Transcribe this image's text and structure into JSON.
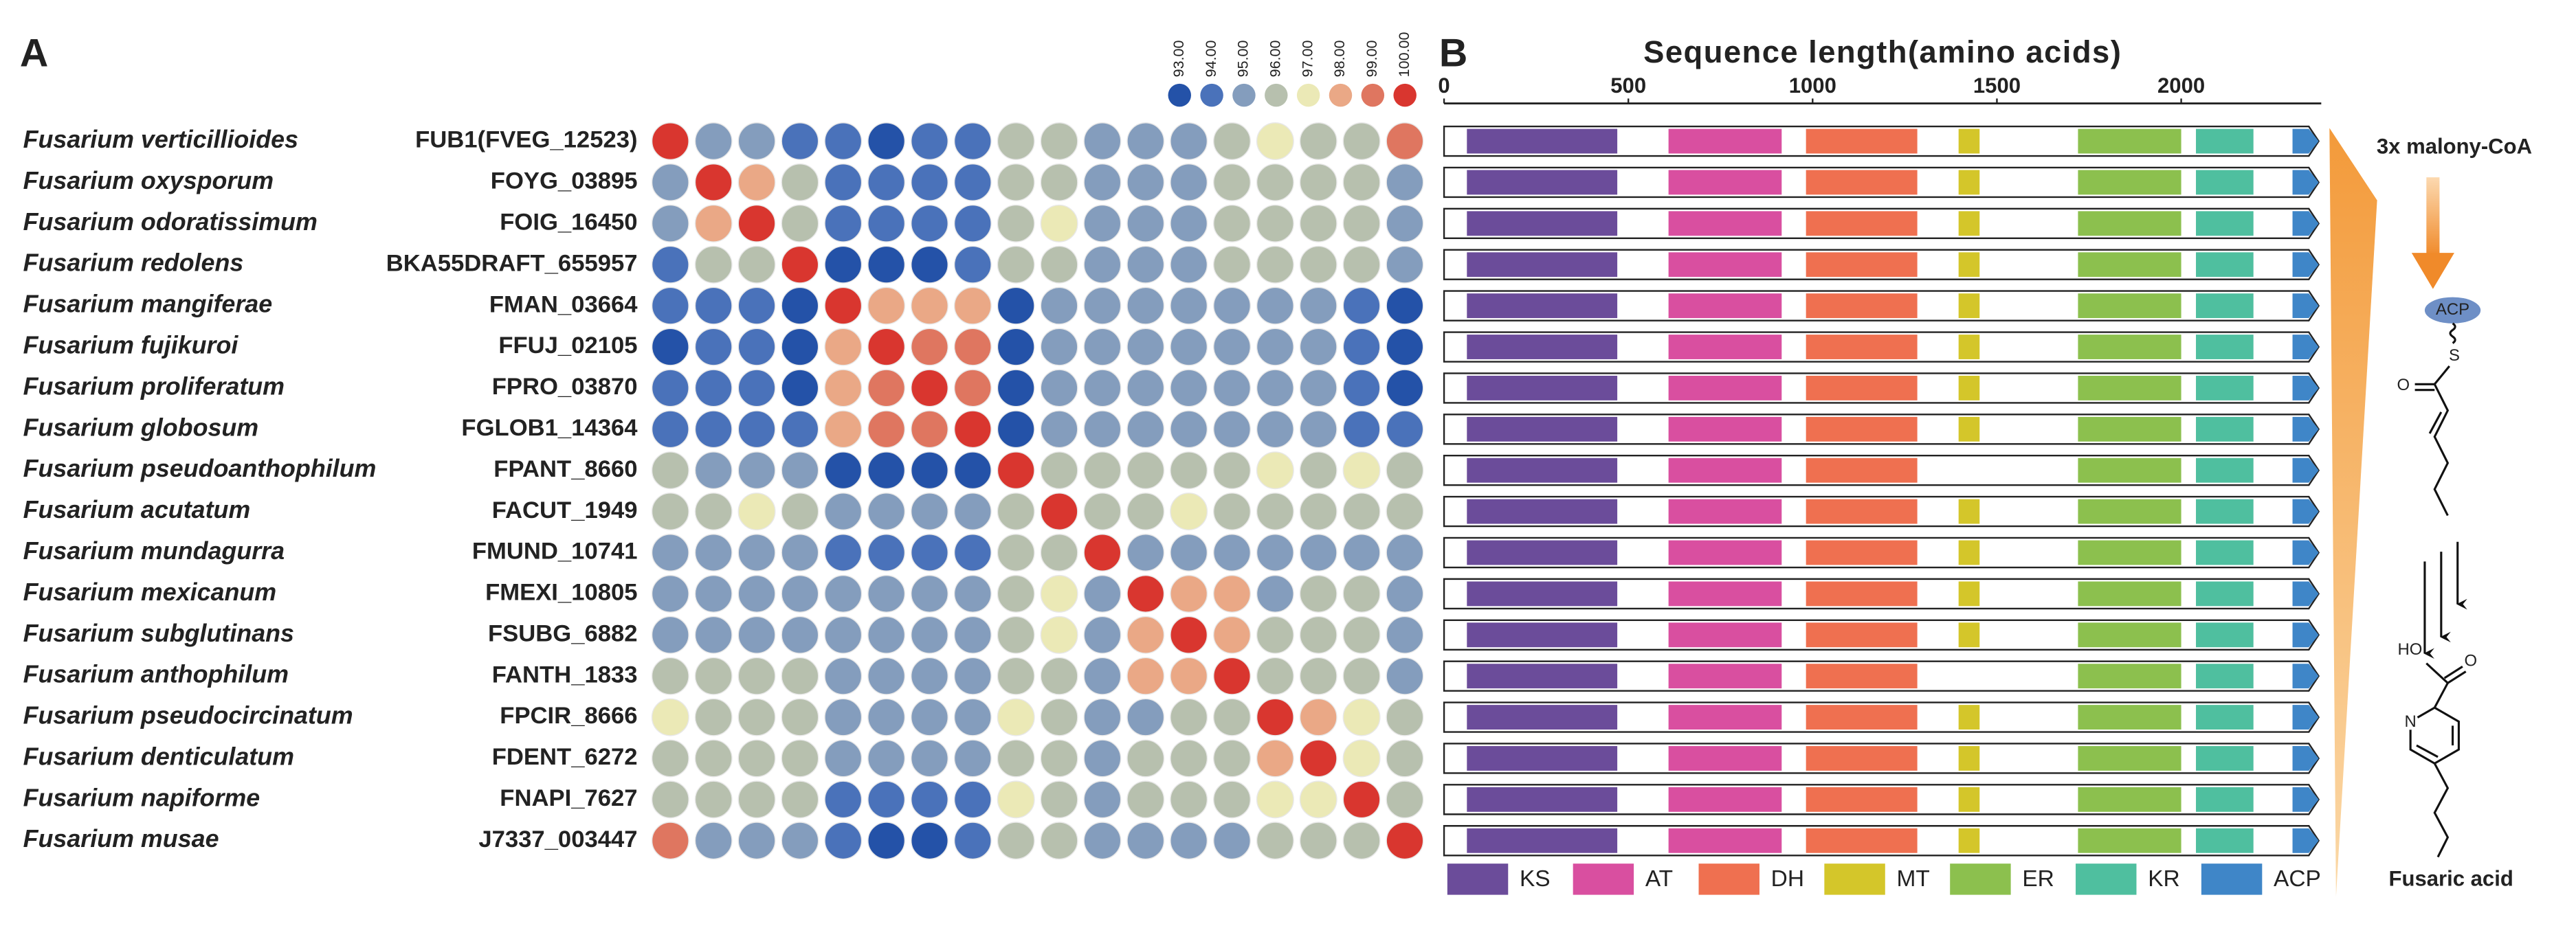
{
  "panel_labels": [
    "A",
    "B"
  ],
  "chart_data": [
    {
      "type": "heatmap",
      "species": [
        "Fusarium verticillioides",
        "Fusarium oxysporum",
        "Fusarium odoratissimum",
        "Fusarium redolens",
        "Fusarium mangiferae",
        "Fusarium fujikuroi",
        "Fusarium proliferatum",
        "Fusarium globosum",
        "Fusarium pseudoanthophilum",
        "Fusarium acutatum",
        "Fusarium mundagurra",
        "Fusarium mexicanum",
        "Fusarium subglutinans",
        "Fusarium anthophilum",
        "Fusarium pseudocircinatum",
        "Fusarium denticulatum",
        "Fusarium napiforme",
        "Fusarium musae"
      ],
      "genes": [
        "FUB1(FVEG_12523)",
        "FOYG_03895",
        "FOIG_16450",
        "BKA55DRAFT_655957",
        "FMAN_03664",
        "FFUJ_02105",
        "FPRO_03870",
        "FGLOB1_14364",
        "FPANT_8660",
        "FACUT_1949",
        "FMUND_10741",
        "FMEXI_10805",
        "FSUBG_6882",
        "FANTH_1833",
        "FPCIR_8666",
        "FDENT_6272",
        "FNAPI_7627",
        "J7337_003447"
      ],
      "values": [
        [
          100,
          95,
          95,
          94,
          94,
          93,
          94,
          94,
          96,
          96,
          95,
          95,
          95,
          96,
          97,
          96,
          96,
          99
        ],
        [
          95,
          100,
          98,
          96,
          94,
          94,
          94,
          94,
          96,
          96,
          95,
          95,
          95,
          96,
          96,
          96,
          96,
          95
        ],
        [
          95,
          98,
          100,
          96,
          94,
          94,
          94,
          94,
          96,
          97,
          95,
          95,
          95,
          96,
          96,
          96,
          96,
          95
        ],
        [
          94,
          96,
          96,
          100,
          93,
          93,
          93,
          94,
          96,
          96,
          95,
          95,
          95,
          96,
          96,
          96,
          96,
          95
        ],
        [
          94,
          94,
          94,
          93,
          100,
          98,
          98,
          98,
          93,
          95,
          95,
          95,
          95,
          95,
          95,
          95,
          94,
          93
        ],
        [
          93,
          94,
          94,
          93,
          98,
          100,
          99,
          99,
          93,
          95,
          95,
          95,
          95,
          95,
          95,
          95,
          94,
          93
        ],
        [
          94,
          94,
          94,
          93,
          98,
          99,
          100,
          99,
          93,
          95,
          95,
          95,
          95,
          95,
          95,
          95,
          94,
          93
        ],
        [
          94,
          94,
          94,
          94,
          98,
          99,
          99,
          100,
          93,
          95,
          95,
          95,
          95,
          95,
          95,
          95,
          94,
          94
        ],
        [
          96,
          95,
          95,
          95,
          93,
          93,
          93,
          93,
          100,
          96,
          96,
          96,
          96,
          96,
          97,
          96,
          97,
          96
        ],
        [
          96,
          96,
          97,
          96,
          95,
          95,
          95,
          95,
          96,
          100,
          96,
          96,
          97,
          96,
          96,
          96,
          96,
          96
        ],
        [
          95,
          95,
          95,
          95,
          94,
          94,
          94,
          94,
          96,
          96,
          100,
          95,
          95,
          95,
          95,
          95,
          95,
          95
        ],
        [
          95,
          95,
          95,
          95,
          95,
          95,
          95,
          95,
          96,
          97,
          95,
          100,
          98,
          98,
          95,
          96,
          96,
          95
        ],
        [
          95,
          95,
          95,
          95,
          95,
          95,
          95,
          95,
          96,
          97,
          95,
          98,
          100,
          98,
          96,
          96,
          96,
          95
        ],
        [
          96,
          96,
          96,
          96,
          95,
          95,
          95,
          95,
          96,
          96,
          95,
          98,
          98,
          100,
          96,
          96,
          96,
          95
        ],
        [
          97,
          96,
          96,
          96,
          95,
          95,
          95,
          95,
          97,
          96,
          95,
          95,
          96,
          96,
          100,
          98,
          97,
          96
        ],
        [
          96,
          96,
          96,
          96,
          95,
          95,
          95,
          95,
          96,
          96,
          95,
          96,
          96,
          96,
          98,
          100,
          97,
          96
        ],
        [
          96,
          96,
          96,
          96,
          94,
          94,
          94,
          94,
          97,
          96,
          95,
          96,
          96,
          96,
          97,
          97,
          100,
          96
        ],
        [
          99,
          95,
          95,
          95,
          94,
          93,
          93,
          94,
          96,
          96,
          95,
          95,
          95,
          95,
          96,
          96,
          96,
          100
        ]
      ],
      "colorscale": {
        "ticks": [
          {
            "value": 93,
            "label": "93.00"
          },
          {
            "value": 94,
            "label": "94.00"
          },
          {
            "value": 95,
            "label": "95.00"
          },
          {
            "value": 96,
            "label": "96.00"
          },
          {
            "value": 97,
            "label": "97.00"
          },
          {
            "value": 98,
            "label": "98.00"
          },
          {
            "value": 99,
            "label": "99.00"
          },
          {
            "value": 100,
            "label": "100.00"
          }
        ],
        "colors": [
          "#2452a8",
          "#4a72ba",
          "#849dbd",
          "#b7c0ae",
          "#ebe9b6",
          "#eaa886",
          "#df7660",
          "#d9362f"
        ]
      }
    },
    {
      "type": "domain",
      "xlabel": "Sequence length(amino acids)",
      "xlim": [
        0,
        2380
      ],
      "xticks": [
        0,
        500,
        1000,
        1500,
        2000
      ],
      "legend": [
        {
          "name": "KS",
          "color": "#6b4c9a"
        },
        {
          "name": "AT",
          "color": "#d94fa0"
        },
        {
          "name": "DH",
          "color": "#ef7050"
        },
        {
          "name": "MT",
          "color": "#d4c62a"
        },
        {
          "name": "ER",
          "color": "#8cc04e"
        },
        {
          "name": "KR",
          "color": "#4fbf9f"
        },
        {
          "name": "ACP",
          "color": "#3f86c8"
        }
      ],
      "rows": [
        [
          [
            62,
            470
          ],
          [
            609,
            916
          ],
          [
            982,
            1284
          ],
          [
            1396,
            1453
          ],
          [
            1720,
            2000
          ],
          [
            2040,
            2196
          ],
          [
            2302,
            2373
          ]
        ],
        [
          [
            62,
            470
          ],
          [
            609,
            916
          ],
          [
            982,
            1284
          ],
          [
            1396,
            1453
          ],
          [
            1720,
            2000
          ],
          [
            2040,
            2196
          ],
          [
            2302,
            2373
          ]
        ],
        [
          [
            62,
            470
          ],
          [
            609,
            916
          ],
          [
            982,
            1284
          ],
          [
            1396,
            1453
          ],
          [
            1720,
            2000
          ],
          [
            2040,
            2196
          ],
          [
            2302,
            2373
          ]
        ],
        [
          [
            62,
            470
          ],
          [
            609,
            916
          ],
          [
            982,
            1284
          ],
          [
            1396,
            1453
          ],
          [
            1720,
            2000
          ],
          [
            2040,
            2196
          ],
          [
            2302,
            2373
          ]
        ],
        [
          [
            62,
            470
          ],
          [
            609,
            916
          ],
          [
            982,
            1284
          ],
          [
            1396,
            1453
          ],
          [
            1720,
            2000
          ],
          [
            2040,
            2196
          ],
          [
            2302,
            2373
          ]
        ],
        [
          [
            62,
            470
          ],
          [
            609,
            916
          ],
          [
            982,
            1284
          ],
          [
            1396,
            1453
          ],
          [
            1720,
            2000
          ],
          [
            2040,
            2196
          ],
          [
            2302,
            2373
          ]
        ],
        [
          [
            62,
            470
          ],
          [
            609,
            916
          ],
          [
            982,
            1284
          ],
          [
            1396,
            1453
          ],
          [
            1720,
            2000
          ],
          [
            2040,
            2196
          ],
          [
            2302,
            2373
          ]
        ],
        [
          [
            62,
            470
          ],
          [
            609,
            916
          ],
          [
            982,
            1284
          ],
          [
            1396,
            1453
          ],
          [
            1720,
            2000
          ],
          [
            2040,
            2196
          ],
          [
            2302,
            2373
          ]
        ],
        [
          [
            62,
            470
          ],
          [
            609,
            916
          ],
          [
            982,
            1284
          ],
          null,
          [
            1720,
            2000
          ],
          [
            2040,
            2196
          ],
          [
            2302,
            2373
          ]
        ],
        [
          [
            62,
            470
          ],
          [
            609,
            916
          ],
          [
            982,
            1284
          ],
          [
            1396,
            1453
          ],
          [
            1720,
            2000
          ],
          [
            2040,
            2196
          ],
          [
            2302,
            2373
          ]
        ],
        [
          [
            62,
            470
          ],
          [
            609,
            916
          ],
          [
            982,
            1284
          ],
          [
            1396,
            1453
          ],
          [
            1720,
            2000
          ],
          [
            2040,
            2196
          ],
          [
            2302,
            2373
          ]
        ],
        [
          [
            62,
            470
          ],
          [
            609,
            916
          ],
          [
            982,
            1284
          ],
          [
            1396,
            1453
          ],
          [
            1720,
            2000
          ],
          [
            2040,
            2196
          ],
          [
            2302,
            2373
          ]
        ],
        [
          [
            62,
            470
          ],
          [
            609,
            916
          ],
          [
            982,
            1284
          ],
          [
            1396,
            1453
          ],
          [
            1720,
            2000
          ],
          [
            2040,
            2196
          ],
          [
            2302,
            2373
          ]
        ],
        [
          [
            62,
            470
          ],
          [
            609,
            916
          ],
          [
            982,
            1284
          ],
          null,
          [
            1720,
            2000
          ],
          [
            2040,
            2196
          ],
          [
            2302,
            2373
          ]
        ],
        [
          [
            62,
            470
          ],
          [
            609,
            916
          ],
          [
            982,
            1284
          ],
          [
            1396,
            1453
          ],
          [
            1720,
            2000
          ],
          [
            2040,
            2196
          ],
          [
            2302,
            2373
          ]
        ],
        [
          [
            62,
            470
          ],
          [
            609,
            916
          ],
          [
            982,
            1284
          ],
          [
            1396,
            1453
          ],
          [
            1720,
            2000
          ],
          [
            2040,
            2196
          ],
          [
            2302,
            2373
          ]
        ],
        [
          [
            62,
            470
          ],
          [
            609,
            916
          ],
          [
            982,
            1284
          ],
          [
            1396,
            1453
          ],
          [
            1720,
            2000
          ],
          [
            2040,
            2196
          ],
          [
            2302,
            2373
          ]
        ],
        [
          [
            62,
            470
          ],
          [
            609,
            916
          ],
          [
            982,
            1284
          ],
          [
            1396,
            1453
          ],
          [
            1720,
            2000
          ],
          [
            2040,
            2196
          ],
          [
            2302,
            2373
          ]
        ]
      ]
    }
  ],
  "pathway": {
    "substrate": "3x malony-CoA",
    "carrier": "ACP",
    "atoms": [
      "S",
      "O",
      "HO",
      "O",
      "N"
    ],
    "product": "Fusaric acid"
  }
}
